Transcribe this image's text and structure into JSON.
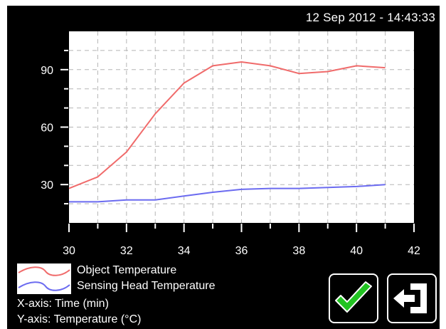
{
  "header": {
    "datetime": "12 Sep 2012 - 14:43:33"
  },
  "chart_data": {
    "type": "line",
    "xlim": [
      30,
      42
    ],
    "ylim": [
      10,
      110
    ],
    "x_ticks": [
      30,
      32,
      34,
      36,
      38,
      40,
      42
    ],
    "y_ticks": [
      30,
      60,
      90
    ],
    "grid": true,
    "legend_position": "bottom-left",
    "series": [
      {
        "name": "Object Temperature",
        "color": "#f06b6b",
        "x": [
          30,
          31,
          32,
          33,
          34,
          35,
          36,
          37,
          38,
          39,
          40,
          41
        ],
        "y": [
          28,
          34,
          47,
          67,
          83,
          92,
          94,
          92,
          88,
          89,
          92,
          91
        ]
      },
      {
        "name": "Sensing Head Temperature",
        "color": "#6b6bf0",
        "x": [
          30,
          31,
          32,
          33,
          34,
          35,
          36,
          37,
          38,
          39,
          40,
          41
        ],
        "y": [
          21,
          21,
          22,
          22,
          24,
          26,
          27.5,
          28,
          28,
          28.5,
          29,
          30
        ]
      }
    ],
    "x_axis_note": "X-axis: Time (min)",
    "y_axis_note": "Y-axis: Temperature (°C)"
  },
  "buttons": {
    "confirm": {
      "icon": "checkmark-icon",
      "color": "#22c322"
    },
    "exit": {
      "icon": "exit-icon",
      "color": "#ffffff"
    }
  }
}
